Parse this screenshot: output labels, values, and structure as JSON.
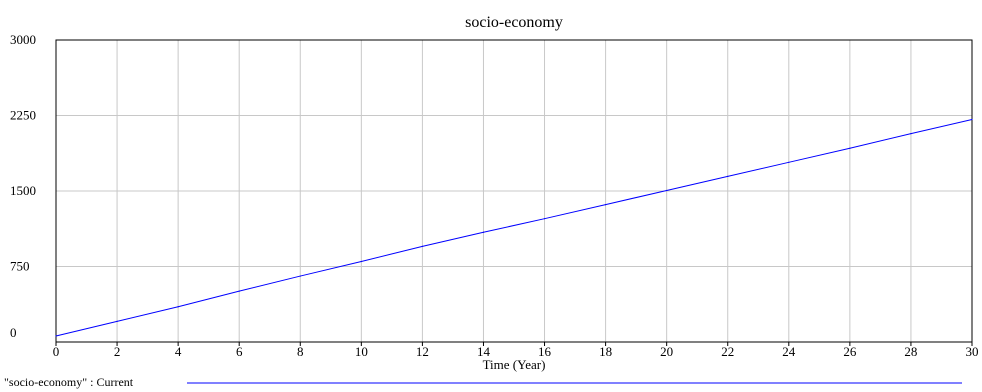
{
  "chart_data": {
    "type": "line",
    "title": "socio-economy",
    "xlabel": "Time (Year)",
    "ylabel": "",
    "xlim": [
      0,
      30
    ],
    "ylim": [
      0,
      3000
    ],
    "x_ticks": [
      0,
      2,
      4,
      6,
      8,
      10,
      12,
      14,
      16,
      18,
      20,
      22,
      24,
      26,
      28,
      30
    ],
    "y_ticks": [
      0,
      750,
      1500,
      2250,
      3000
    ],
    "grid": true,
    "legend_position": "bottom-left",
    "series": [
      {
        "name": "\"socio-economy\" : Current",
        "color": "#0000ff",
        "x": [
          0,
          2,
          4,
          6,
          8,
          10,
          12,
          14,
          16,
          18,
          20,
          22,
          24,
          26,
          28,
          30
        ],
        "y": [
          60,
          205,
          350,
          505,
          655,
          800,
          950,
          1090,
          1225,
          1365,
          1505,
          1645,
          1785,
          1925,
          2070,
          2210
        ]
      }
    ]
  }
}
